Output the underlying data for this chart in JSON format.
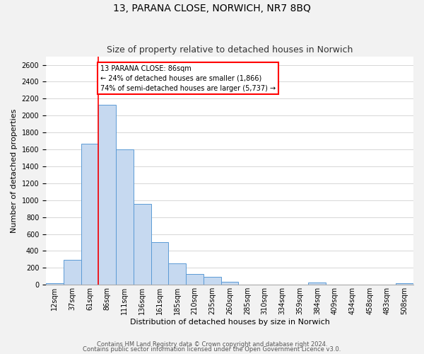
{
  "title": "13, PARANA CLOSE, NORWICH, NR7 8BQ",
  "subtitle": "Size of property relative to detached houses in Norwich",
  "xlabel": "Distribution of detached houses by size in Norwich",
  "ylabel": "Number of detached properties",
  "bin_labels": [
    "12sqm",
    "37sqm",
    "61sqm",
    "86sqm",
    "111sqm",
    "136sqm",
    "161sqm",
    "185sqm",
    "210sqm",
    "235sqm",
    "260sqm",
    "285sqm",
    "310sqm",
    "334sqm",
    "359sqm",
    "384sqm",
    "409sqm",
    "434sqm",
    "458sqm",
    "483sqm",
    "508sqm"
  ],
  "bar_values": [
    20,
    295,
    1665,
    2130,
    1600,
    960,
    505,
    255,
    125,
    95,
    35,
    5,
    5,
    0,
    0,
    30,
    0,
    0,
    0,
    0,
    20
  ],
  "bar_color": "#c6d9f0",
  "bar_edgecolor": "#5b9bd5",
  "redline_index": 3,
  "annotation_text": "13 PARANA CLOSE: 86sqm\n← 24% of detached houses are smaller (1,866)\n74% of semi-detached houses are larger (5,737) →",
  "annotation_boxcolor": "white",
  "annotation_boxedgecolor": "red",
  "ylim": [
    0,
    2700
  ],
  "yticks": [
    0,
    200,
    400,
    600,
    800,
    1000,
    1200,
    1400,
    1600,
    1800,
    2000,
    2200,
    2400,
    2600
  ],
  "footer1": "Contains HM Land Registry data © Crown copyright and database right 2024.",
  "footer2": "Contains public sector information licensed under the Open Government Licence v3.0.",
  "bg_color": "#f2f2f2",
  "plot_bg_color": "#ffffff",
  "title_fontsize": 10,
  "subtitle_fontsize": 9,
  "axis_label_fontsize": 8,
  "tick_fontsize": 7,
  "footer_fontsize": 6,
  "grid_color": "#d0d0d0"
}
